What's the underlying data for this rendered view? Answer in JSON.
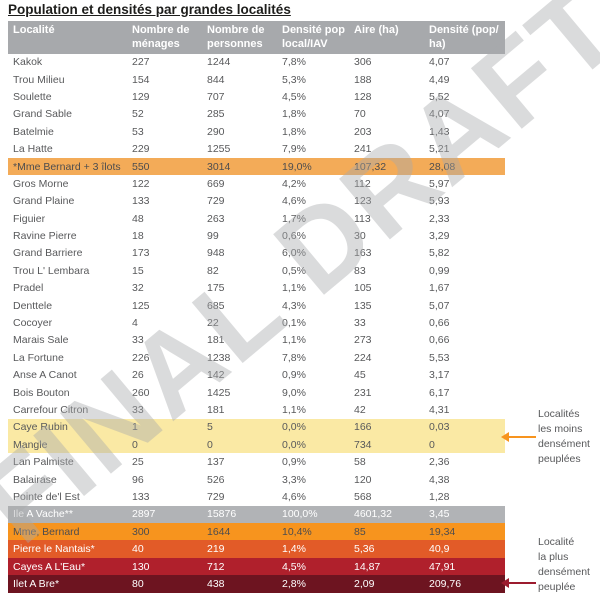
{
  "page": {
    "title": "Population et densités par grandes localités",
    "watermark": "FINAL DRAFT"
  },
  "table": {
    "columns": [
      "Localité",
      "Nombre de ménages",
      "Nombre de personnes",
      "Densité pop local/IAV",
      "Aire (ha)",
      "Densité (pop/ ha)"
    ],
    "rows": [
      {
        "style": "default",
        "cells": [
          "Kakok",
          "227",
          "1244",
          "7,8%",
          "306",
          "4,07"
        ]
      },
      {
        "style": "default",
        "cells": [
          "Trou Milieu",
          "154",
          "844",
          "5,3%",
          "188",
          "4,49"
        ]
      },
      {
        "style": "default",
        "cells": [
          "Soulette",
          "129",
          "707",
          "4,5%",
          "128",
          "5,52"
        ]
      },
      {
        "style": "default",
        "cells": [
          "Grand Sable",
          "52",
          "285",
          "1,8%",
          "70",
          "4,07"
        ]
      },
      {
        "style": "default",
        "cells": [
          "Batelmie",
          "53",
          "290",
          "1,8%",
          "203",
          "1,43"
        ]
      },
      {
        "style": "default",
        "cells": [
          "La Hatte",
          "229",
          "1255",
          "7,9%",
          "241",
          "5,21"
        ]
      },
      {
        "style": "orange_light",
        "cells": [
          "*Mme Bernard + 3 îlots",
          "550",
          "3014",
          "19,0%",
          "107,32",
          "28,08"
        ]
      },
      {
        "style": "default",
        "cells": [
          "Gros Morne",
          "122",
          "669",
          "4,2%",
          "112",
          "5,97"
        ]
      },
      {
        "style": "default",
        "cells": [
          "Grand Plaine",
          "133",
          "729",
          "4,6%",
          "123",
          "5,93"
        ]
      },
      {
        "style": "default",
        "cells": [
          "Figuier",
          "48",
          "263",
          "1,7%",
          "113",
          "2,33"
        ]
      },
      {
        "style": "default",
        "cells": [
          "Ravine Pierre",
          "18",
          "99",
          "0,6%",
          "30",
          "3,29"
        ]
      },
      {
        "style": "default",
        "cells": [
          "Grand Barriere",
          "173",
          "948",
          "6,0%",
          "163",
          "5,82"
        ]
      },
      {
        "style": "default",
        "cells": [
          "Trou L' Lembara",
          "15",
          "82",
          "0,5%",
          "83",
          "0,99"
        ]
      },
      {
        "style": "default",
        "cells": [
          "Pradel",
          "32",
          "175",
          "1,1%",
          "105",
          "1,67"
        ]
      },
      {
        "style": "default",
        "cells": [
          "Denttele",
          "125",
          "685",
          "4,3%",
          "135",
          "5,07"
        ]
      },
      {
        "style": "default",
        "cells": [
          "Cocoyer",
          "4",
          "22",
          "0,1%",
          "33",
          "0,66"
        ]
      },
      {
        "style": "default",
        "cells": [
          "Marais Sale",
          "33",
          "181",
          "1,1%",
          "273",
          "0,66"
        ]
      },
      {
        "style": "default",
        "cells": [
          "La Fortune",
          "226",
          "1238",
          "7,8%",
          "224",
          "5,53"
        ]
      },
      {
        "style": "default",
        "cells": [
          "Anse A Canot",
          "26",
          "142",
          "0,9%",
          "45",
          "3,17"
        ]
      },
      {
        "style": "default",
        "cells": [
          "Bois Bouton",
          "260",
          "1425",
          "9,0%",
          "231",
          "6,17"
        ]
      },
      {
        "style": "default",
        "cells": [
          "Carrefour Citron",
          "33",
          "181",
          "1,1%",
          "42",
          "4,31"
        ]
      },
      {
        "style": "yellow",
        "cells": [
          "Caye Rubin",
          "1",
          "5",
          "0,0%",
          "166",
          "0,03"
        ]
      },
      {
        "style": "yellow",
        "cells": [
          "Mangle",
          "0",
          "0",
          "0,0%",
          "734",
          "0"
        ]
      },
      {
        "style": "default",
        "cells": [
          "Lan Palmiste",
          "25",
          "137",
          "0,9%",
          "58",
          "2,36"
        ]
      },
      {
        "style": "default",
        "cells": [
          "Balairase",
          "96",
          "526",
          "3,3%",
          "120",
          "4,38"
        ]
      },
      {
        "style": "default",
        "cells": [
          "Pointe de'l Est",
          "133",
          "729",
          "4,6%",
          "568",
          "1,28"
        ]
      },
      {
        "style": "gray",
        "cells": [
          "Ile A Vache**",
          "2897",
          "15876",
          "100,0%",
          "4601,32",
          "3,45"
        ]
      },
      {
        "style": "orange",
        "cells": [
          "Mme, Bernard",
          "300",
          "1644",
          "10,4%",
          "85",
          "19,34"
        ]
      },
      {
        "style": "red_orange",
        "cells": [
          "Pierre le Nantais*",
          "40",
          "219",
          "1,4%",
          "5,36",
          "40,9"
        ]
      },
      {
        "style": "red",
        "cells": [
          "Cayes A L'Eau*",
          "130",
          "712",
          "4,5%",
          "14,87",
          "47,91"
        ]
      },
      {
        "style": "dark_red",
        "cells": [
          "Ilet A Bre*",
          "80",
          "438",
          "2,8%",
          "2,09",
          "209,76"
        ]
      }
    ]
  },
  "annotations": {
    "least_dense": {
      "lines": [
        "Localités",
        "les moins",
        "densément",
        "peuplées"
      ]
    },
    "most_dense": {
      "lines": [
        "Localité",
        "la plus",
        "densément",
        "peuplée"
      ]
    }
  },
  "colors": {
    "header_bg": "#a7a9ac",
    "body_text": "#58595b",
    "row_highlight_orange_light": "#f3ab58",
    "row_highlight_yellow": "#fae9a4",
    "row_total_gray": "#b1b3b6",
    "row_orange": "#f7941e",
    "row_red_orange": "#e25b28",
    "row_red": "#b0202c",
    "row_dark_red": "#6d1420",
    "arrow_least_dense": "#f7941e",
    "arrow_most_dense": "#9c1b2e"
  }
}
